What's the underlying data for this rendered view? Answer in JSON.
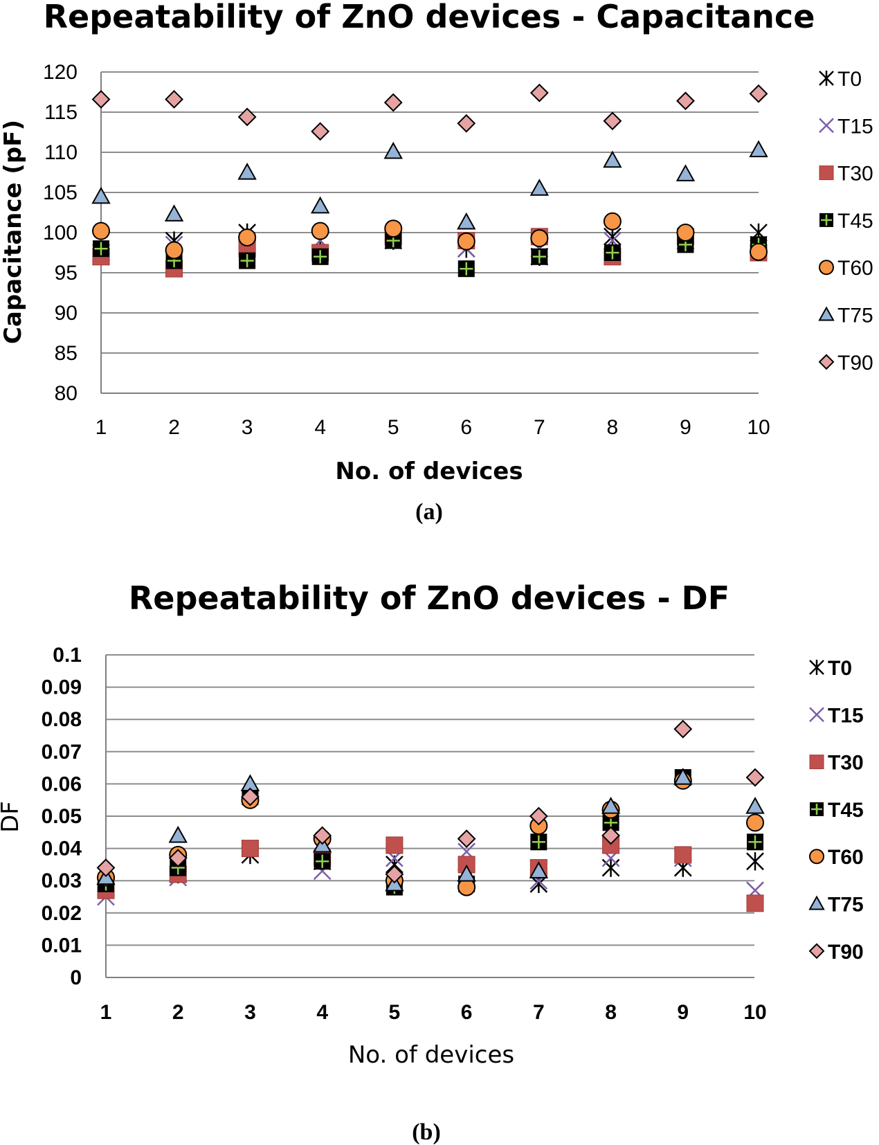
{
  "chart_data": [
    {
      "type": "scatter",
      "title": "Repeatability of ZnO devices - Capacitance",
      "xlabel": "No. of devices",
      "ylabel": "Capacitance (pF)",
      "caption": "(a)",
      "categories": [
        "1",
        "2",
        "3",
        "4",
        "5",
        "6",
        "7",
        "8",
        "9",
        "10"
      ],
      "ylim": [
        80,
        120
      ],
      "yticks": [
        "80",
        "85",
        "90",
        "95",
        "100",
        "105",
        "110",
        "115",
        "120"
      ],
      "grid": true,
      "legend_position": "right",
      "series": [
        {
          "name": "T0",
          "marker": "asterisk",
          "color": "#000000",
          "values": [
            97.5,
            99,
            100,
            99,
            99,
            98,
            97,
            99.5,
            99,
            100
          ]
        },
        {
          "name": "T15",
          "marker": "x",
          "color": "#7b5ea7",
          "values": [
            97,
            98.5,
            99,
            99,
            99,
            98,
            98,
            99,
            99,
            98.5
          ]
        },
        {
          "name": "T30",
          "marker": "square",
          "color": "#c0504d",
          "values": [
            97,
            95.5,
            98,
            97.5,
            99.5,
            99,
            99.5,
            97,
            99.5,
            97.5
          ]
        },
        {
          "name": "T45",
          "marker": "plus-square",
          "color": "#000000",
          "values": [
            98,
            96.5,
            96.5,
            97,
            99,
            95.5,
            97,
            97.5,
            98.5,
            98.5
          ]
        },
        {
          "name": "T60",
          "marker": "circle",
          "color": "#f79646",
          "values": [
            100.2,
            97.8,
            99.4,
            100.2,
            100.5,
            98.9,
            99.3,
            101.4,
            100,
            97.6
          ]
        },
        {
          "name": "T75",
          "marker": "triangle",
          "color": "#95b3d7",
          "values": [
            104.5,
            102.3,
            107.5,
            103.3,
            110.1,
            101.3,
            105.5,
            109,
            107.3,
            110.3
          ]
        },
        {
          "name": "T90",
          "marker": "diamond",
          "color": "#e6a3a3",
          "values": [
            116.6,
            116.6,
            114.4,
            112.6,
            116.2,
            113.6,
            117.4,
            113.9,
            116.4,
            117.3
          ]
        }
      ]
    },
    {
      "type": "scatter",
      "title": "Repeatability of ZnO devices - DF",
      "xlabel": "No. of devices",
      "ylabel": "DF",
      "caption": "(b)",
      "categories": [
        "1",
        "2",
        "3",
        "4",
        "5",
        "6",
        "7",
        "8",
        "9",
        "10"
      ],
      "ylim": [
        0,
        0.1
      ],
      "yticks": [
        "0",
        "0.01",
        "0.02",
        "0.03",
        "0.04",
        "0.05",
        "0.06",
        "0.07",
        "0.08",
        "0.09",
        "0.1"
      ],
      "grid": true,
      "legend_position": "right",
      "series": [
        {
          "name": "T0",
          "marker": "asterisk",
          "color": "#000000",
          "values": [
            0.028,
            0.032,
            0.038,
            0.036,
            0.035,
            0.031,
            0.029,
            0.034,
            0.034,
            0.036
          ]
        },
        {
          "name": "T15",
          "marker": "x",
          "color": "#7b5ea7",
          "values": [
            0.025,
            0.031,
            0.04,
            0.033,
            0.037,
            0.039,
            0.03,
            0.037,
            0.037,
            0.027
          ]
        },
        {
          "name": "T30",
          "marker": "square",
          "color": "#c0504d",
          "values": [
            0.027,
            0.032,
            0.04,
            0.037,
            0.041,
            0.035,
            0.034,
            0.041,
            0.038,
            0.023
          ]
        },
        {
          "name": "T45",
          "marker": "plus-square",
          "color": "#000000",
          "values": [
            0.029,
            0.034,
            0.056,
            0.036,
            0.028,
            0.029,
            0.042,
            0.048,
            0.062,
            0.042
          ]
        },
        {
          "name": "T60",
          "marker": "circle",
          "color": "#f79646",
          "values": [
            0.031,
            0.038,
            0.055,
            0.043,
            0.03,
            0.028,
            0.047,
            0.052,
            0.061,
            0.048
          ]
        },
        {
          "name": "T75",
          "marker": "triangle",
          "color": "#95b3d7",
          "values": [
            0.031,
            0.044,
            0.06,
            0.041,
            0.029,
            0.032,
            0.033,
            0.053,
            0.062,
            0.053
          ]
        },
        {
          "name": "T90",
          "marker": "diamond",
          "color": "#e6a3a3",
          "values": [
            0.034,
            0.037,
            0.056,
            0.044,
            0.032,
            0.043,
            0.05,
            0.044,
            0.077,
            0.062
          ]
        }
      ]
    }
  ]
}
